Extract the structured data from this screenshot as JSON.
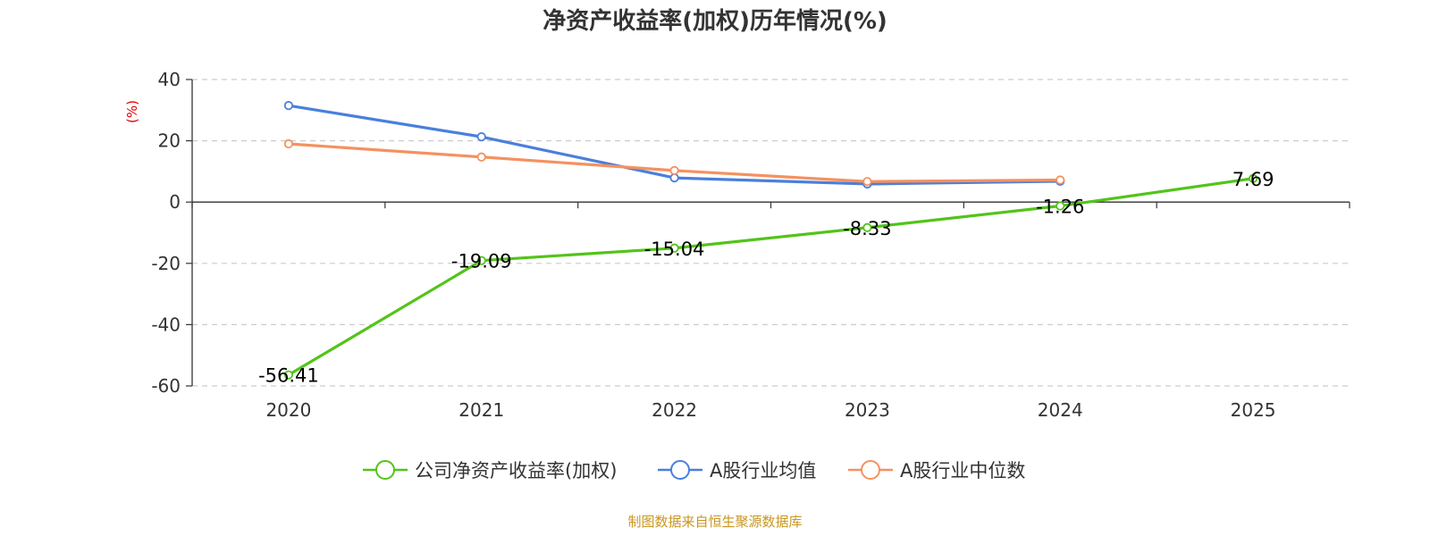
{
  "chart_data": {
    "type": "line",
    "title": "净资产收益率(加权)历年情况(%)",
    "ylabel": "(%)",
    "xlabel": "",
    "categories": [
      "2020",
      "2021",
      "2022",
      "2023",
      "2024",
      "2025"
    ],
    "ylim": [
      -60,
      40
    ],
    "yticks": [
      40,
      20,
      0,
      -20,
      -40,
      -60
    ],
    "grid": true,
    "legend_position": "bottom",
    "series": [
      {
        "name": "公司净资产收益率(加权)",
        "color": "#52c41a",
        "values": [
          -56.41,
          -19.09,
          -15.04,
          -8.33,
          -1.26,
          7.69
        ],
        "labels": [
          "-56.41",
          "-19.09",
          "-15.04",
          "-8.33",
          "-1.26",
          "7.69"
        ],
        "show_labels": true
      },
      {
        "name": "A股行业均值",
        "color": "#4a7fdc",
        "values": [
          31.5,
          21.3,
          7.9,
          5.9,
          6.8,
          null
        ],
        "show_labels": false
      },
      {
        "name": "A股行业中位数",
        "color": "#f5915f",
        "values": [
          19.0,
          14.7,
          10.3,
          6.7,
          7.2,
          null
        ],
        "show_labels": false
      }
    ],
    "source": "制图数据来自恒生聚源数据库"
  }
}
